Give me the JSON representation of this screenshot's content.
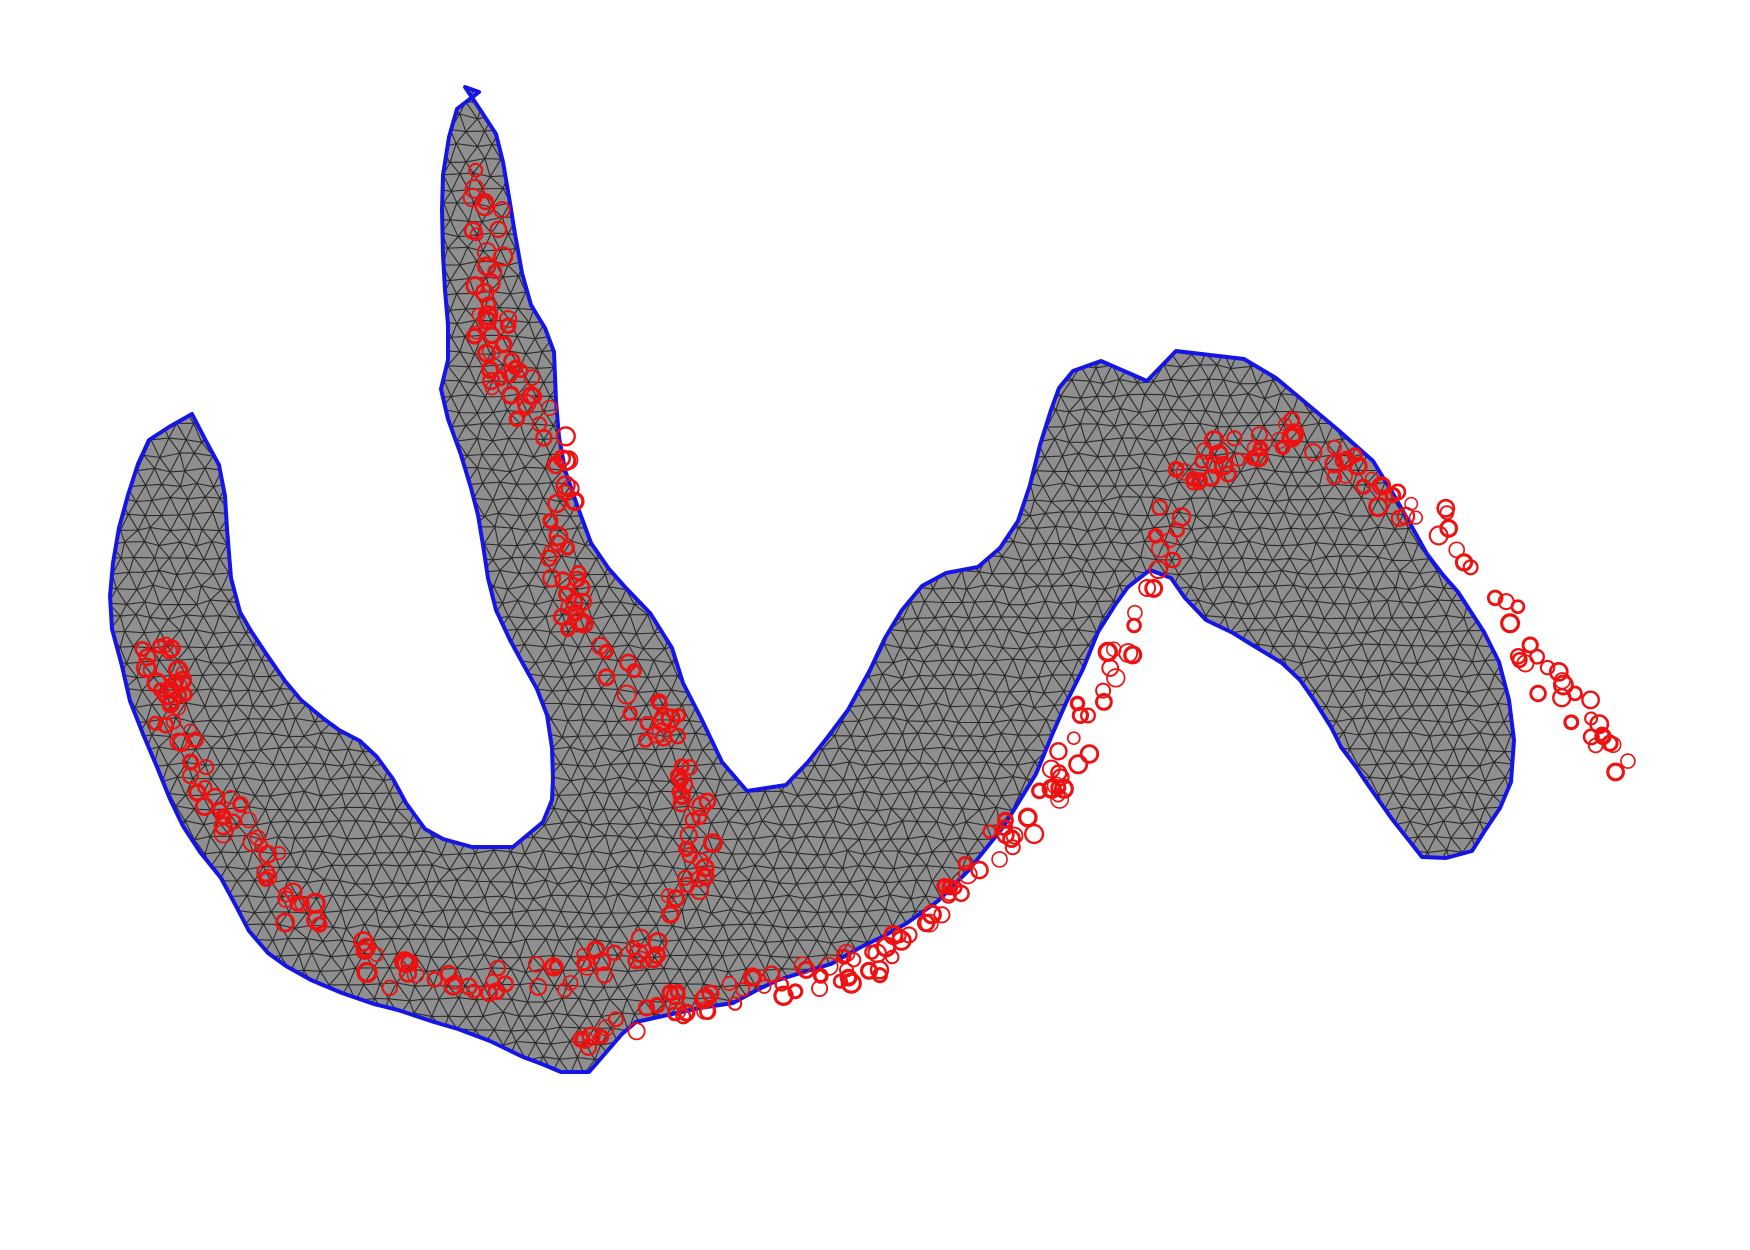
{
  "figure": {
    "description_free": true,
    "colors": {
      "background": "#ffffff",
      "mesh_fill": "#8f8f8f",
      "mesh_line": "#2b2b2b",
      "boundary": "#1515e8",
      "marker": "#ee1111"
    },
    "elements": {
      "boundary": "closed-polyline",
      "mesh": "triangulation",
      "markers": "circle-markers"
    }
  }
}
